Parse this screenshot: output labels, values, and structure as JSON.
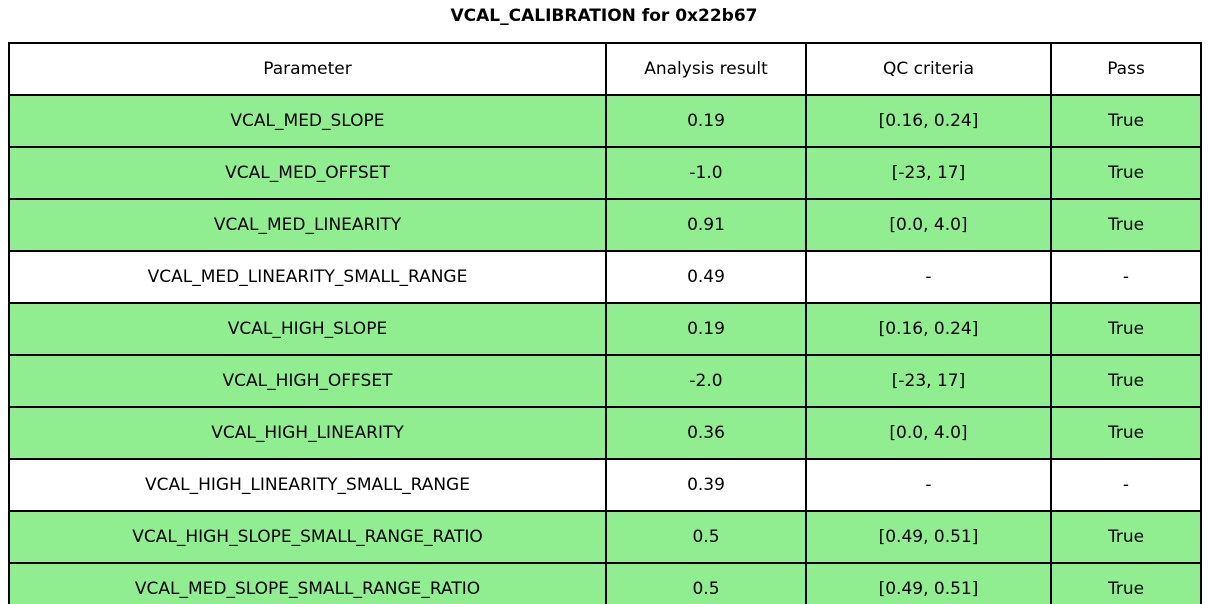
{
  "title": "VCAL_CALIBRATION for 0x22b67",
  "colors": {
    "pass_row_bg": "#90EE90",
    "neutral_row_bg": "#FFFFFF",
    "border": "#000000",
    "text": "#000000"
  },
  "chart_data": {
    "type": "table",
    "title": "VCAL_CALIBRATION for 0x22b67",
    "columns": [
      "Parameter",
      "Analysis result",
      "QC criteria",
      "Pass"
    ],
    "rows": [
      {
        "cells": [
          "VCAL_MED_SLOPE",
          "0.19",
          "[0.16, 0.24]",
          "True"
        ],
        "highlight": true
      },
      {
        "cells": [
          "VCAL_MED_OFFSET",
          "-1.0",
          "[-23, 17]",
          "True"
        ],
        "highlight": true
      },
      {
        "cells": [
          "VCAL_MED_LINEARITY",
          "0.91",
          "[0.0, 4.0]",
          "True"
        ],
        "highlight": true
      },
      {
        "cells": [
          "VCAL_MED_LINEARITY_SMALL_RANGE",
          "0.49",
          "-",
          "-"
        ],
        "highlight": false
      },
      {
        "cells": [
          "VCAL_HIGH_SLOPE",
          "0.19",
          "[0.16, 0.24]",
          "True"
        ],
        "highlight": true
      },
      {
        "cells": [
          "VCAL_HIGH_OFFSET",
          "-2.0",
          "[-23, 17]",
          "True"
        ],
        "highlight": true
      },
      {
        "cells": [
          "VCAL_HIGH_LINEARITY",
          "0.36",
          "[0.0, 4.0]",
          "True"
        ],
        "highlight": true
      },
      {
        "cells": [
          "VCAL_HIGH_LINEARITY_SMALL_RANGE",
          "0.39",
          "-",
          "-"
        ],
        "highlight": false
      },
      {
        "cells": [
          "VCAL_HIGH_SLOPE_SMALL_RANGE_RATIO",
          "0.5",
          "[0.49, 0.51]",
          "True"
        ],
        "highlight": true
      },
      {
        "cells": [
          "VCAL_MED_SLOPE_SMALL_RANGE_RATIO",
          "0.5",
          "[0.49, 0.51]",
          "True"
        ],
        "highlight": true
      }
    ]
  }
}
